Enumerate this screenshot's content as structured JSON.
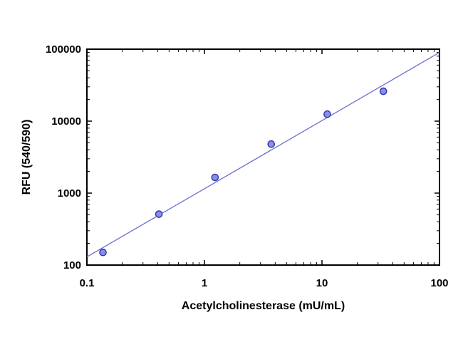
{
  "chart_data": {
    "type": "scatter",
    "xlabel": "Acetylcholinesterase (mU/mL)",
    "ylabel": "RFU (540/590)",
    "x_scale": "log",
    "y_scale": "log",
    "xlim": [
      0.1,
      100
    ],
    "ylim": [
      100,
      100000
    ],
    "x_ticks": [
      "0.1",
      "1",
      "10",
      "100"
    ],
    "y_ticks": [
      "100",
      "1000",
      "10000",
      "100000"
    ],
    "grid": false,
    "legend": "none",
    "series": [
      {
        "x": [
          0.137,
          0.41,
          1.23,
          3.7,
          11.1,
          33.3
        ],
        "y": [
          150,
          510,
          1650,
          4800,
          12500,
          26000
        ]
      }
    ],
    "fit_line": {
      "x": [
        0.1,
        100
      ],
      "y": [
        130,
        90000
      ]
    },
    "colors": {
      "line": "#6b6fd0",
      "marker_fill": "#8a8fe6",
      "marker_stroke": "#2f33a8",
      "axis": "#000000"
    }
  }
}
